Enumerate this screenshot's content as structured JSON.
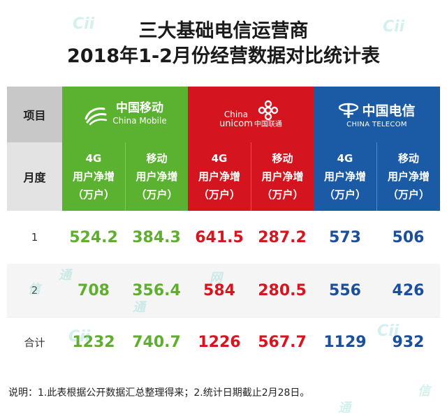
{
  "title_line1": "三大基础电信运营商",
  "title_line2": "2018年1-2月份经营数据对比统计表",
  "header": {
    "item_label": "项目",
    "month_label": "月度",
    "china_mobile": {
      "name_cn": "中国移动",
      "name_en": "China Mobile",
      "color": "#5ab230"
    },
    "china_unicom": {
      "name_cn": "中国联通",
      "name_en_1": "China",
      "name_en_2": "unicom",
      "color": "#d4141e"
    },
    "china_telecom": {
      "name_cn": "中国电信",
      "name_en": "CHINA TELECOM",
      "color": "#1b5ba6"
    }
  },
  "columns": [
    {
      "line1": "4G",
      "line2": "用户净增",
      "line3": "（万户）"
    },
    {
      "line1": "移动",
      "line2": "用户净增",
      "line3": "（万户）"
    },
    {
      "line1": "4G",
      "line2": "用户净增",
      "line3": "（万户）"
    },
    {
      "line1": "移动",
      "line2": "用户净增",
      "line3": "（万户）"
    },
    {
      "line1": "4G",
      "line2": "用户净增",
      "line3": "（万户）"
    },
    {
      "line1": "移动",
      "line2": "用户净增",
      "line3": "（万户）"
    }
  ],
  "rows": [
    {
      "label": "1",
      "values": [
        "524.2",
        "384.3",
        "641.5",
        "287.2",
        "573",
        "506"
      ]
    },
    {
      "label": "2",
      "values": [
        "708",
        "356.4",
        "584",
        "280.5",
        "556",
        "426"
      ]
    },
    {
      "label": "合计",
      "values": [
        "1232",
        "740.7",
        "1226",
        "567.7",
        "1129",
        "932"
      ]
    }
  ],
  "note": "说明：1.此表根据公开数据汇总整理得来；2.统计日期截止2月28日。",
  "watermark": {
    "brand": "Cii",
    "chars": [
      "网",
      "通",
      "信"
    ]
  }
}
